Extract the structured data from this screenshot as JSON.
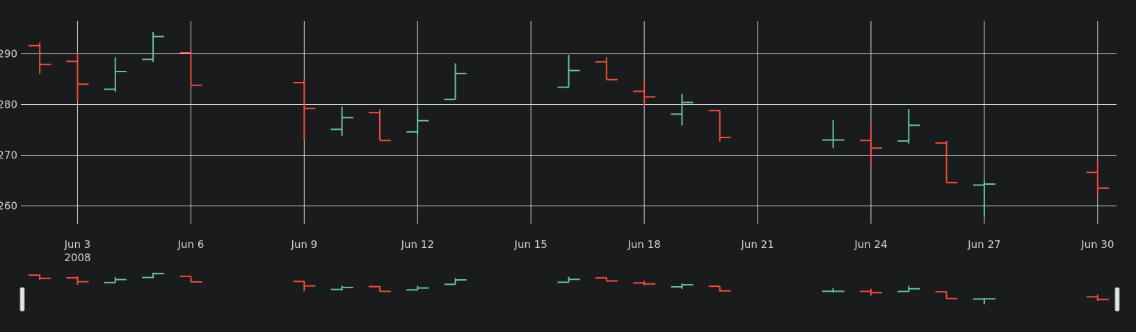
{
  "chart_data": {
    "type": "ohlc",
    "title": "",
    "xlabel": "",
    "ylabel": "",
    "x_ticks": [
      {
        "date": "2008-06-03",
        "label": "Jun 3",
        "sublabel": "2008"
      },
      {
        "date": "2008-06-06",
        "label": "Jun 6",
        "sublabel": ""
      },
      {
        "date": "2008-06-09",
        "label": "Jun 9",
        "sublabel": ""
      },
      {
        "date": "2008-06-12",
        "label": "Jun 12",
        "sublabel": ""
      },
      {
        "date": "2008-06-15",
        "label": "Jun 15",
        "sublabel": ""
      },
      {
        "date": "2008-06-18",
        "label": "Jun 18",
        "sublabel": ""
      },
      {
        "date": "2008-06-21",
        "label": "Jun 21",
        "sublabel": ""
      },
      {
        "date": "2008-06-24",
        "label": "Jun 24",
        "sublabel": ""
      },
      {
        "date": "2008-06-27",
        "label": "Jun 27",
        "sublabel": ""
      },
      {
        "date": "2008-06-30",
        "label": "Jun 30",
        "sublabel": ""
      }
    ],
    "y_ticks": [
      260,
      270,
      280,
      290
    ],
    "xlim": [
      "2008-06-01 12:00",
      "2008-06-30 12:00"
    ],
    "ylim": [
      256.5,
      296.5
    ],
    "grid": true,
    "increasing_color": "#66c2a5",
    "decreasing_color": "#f44d3c",
    "background_color": "#1a1b1d",
    "rangeslider": true,
    "bars": [
      {
        "date": "2008-06-02",
        "open": 291.6,
        "high": 292.2,
        "low": 286.0,
        "close": 287.9
      },
      {
        "date": "2008-06-03",
        "open": 288.5,
        "high": 290.3,
        "low": 280.5,
        "close": 284.0
      },
      {
        "date": "2008-06-04",
        "open": 283.0,
        "high": 289.3,
        "low": 282.5,
        "close": 286.5
      },
      {
        "date": "2008-06-05",
        "open": 288.9,
        "high": 294.3,
        "low": 288.4,
        "close": 293.4
      },
      {
        "date": "2008-06-06",
        "open": 290.2,
        "high": 290.7,
        "low": 283.8,
        "close": 283.8
      },
      {
        "date": "2008-06-09",
        "open": 284.3,
        "high": 285.0,
        "low": 273.0,
        "close": 279.2
      },
      {
        "date": "2008-06-10",
        "open": 275.1,
        "high": 279.6,
        "low": 273.8,
        "close": 277.4
      },
      {
        "date": "2008-06-11",
        "open": 278.4,
        "high": 279.0,
        "low": 272.9,
        "close": 272.9
      },
      {
        "date": "2008-06-12",
        "open": 274.6,
        "high": 279.3,
        "low": 274.1,
        "close": 276.8
      },
      {
        "date": "2008-06-13",
        "open": 281.0,
        "high": 288.1,
        "low": 281.0,
        "close": 286.1
      },
      {
        "date": "2008-06-16",
        "open": 283.4,
        "high": 289.8,
        "low": 283.4,
        "close": 286.7
      },
      {
        "date": "2008-06-17",
        "open": 288.4,
        "high": 289.3,
        "low": 284.9,
        "close": 284.9
      },
      {
        "date": "2008-06-18",
        "open": 282.6,
        "high": 284.9,
        "low": 279.8,
        "close": 281.5
      },
      {
        "date": "2008-06-19",
        "open": 278.1,
        "high": 282.1,
        "low": 275.9,
        "close": 280.4
      },
      {
        "date": "2008-06-20",
        "open": 278.8,
        "high": 278.8,
        "low": 272.7,
        "close": 273.5
      },
      {
        "date": "2008-06-23",
        "open": 273.0,
        "high": 276.9,
        "low": 271.4,
        "close": 273.0
      },
      {
        "date": "2008-06-24",
        "open": 272.9,
        "high": 276.0,
        "low": 268.0,
        "close": 271.4
      },
      {
        "date": "2008-06-25",
        "open": 272.8,
        "high": 279.1,
        "low": 272.3,
        "close": 275.9
      },
      {
        "date": "2008-06-26",
        "open": 272.4,
        "high": 272.8,
        "low": 264.6,
        "close": 264.6
      },
      {
        "date": "2008-06-27",
        "open": 264.1,
        "high": 265.0,
        "low": 257.9,
        "close": 264.3
      },
      {
        "date": "2008-06-30",
        "open": 266.6,
        "high": 269.3,
        "low": 262.0,
        "close": 263.5
      }
    ]
  }
}
